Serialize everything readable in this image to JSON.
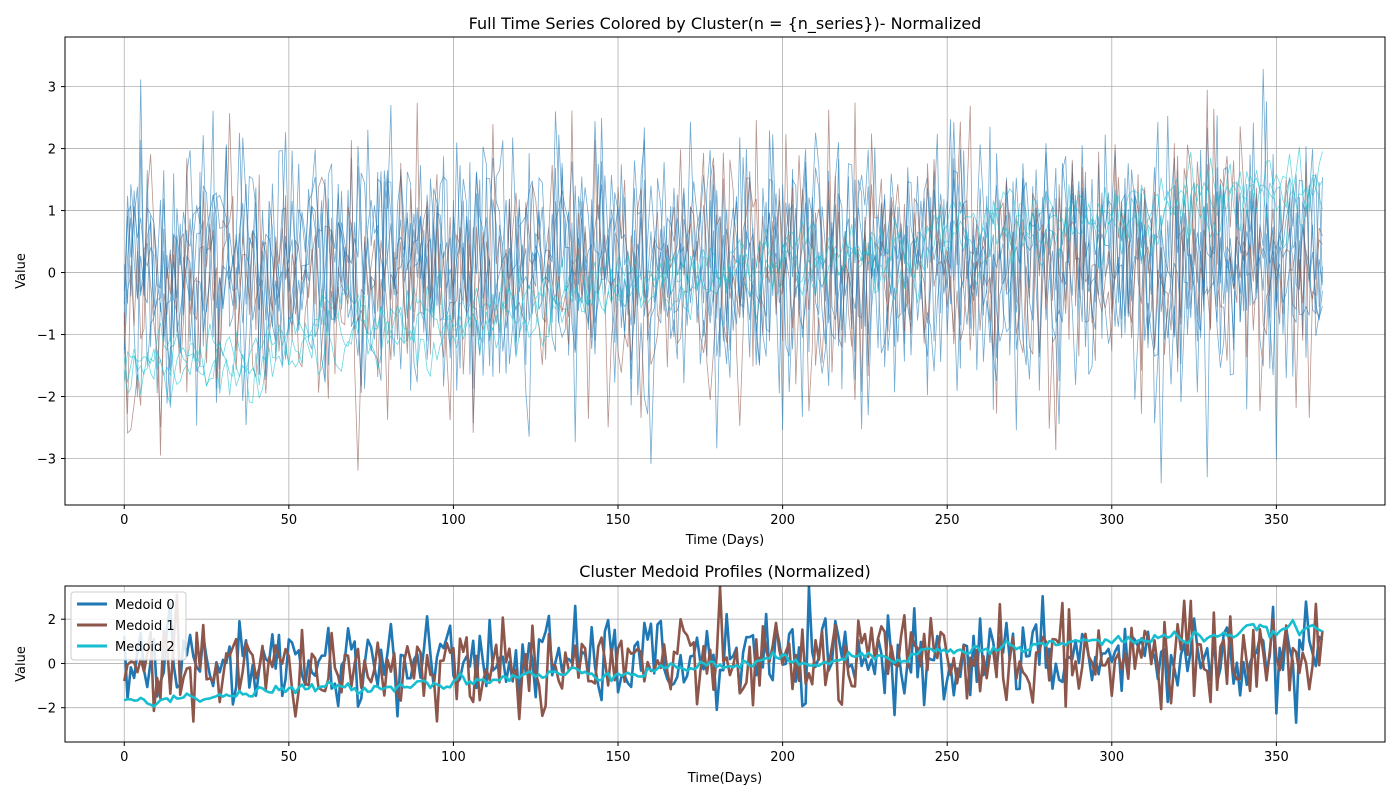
{
  "colors": {
    "cluster0": "#1f77b4",
    "cluster1": "#8c564b",
    "cluster2": "#17becf",
    "grid": "#b0b0b0",
    "axis": "#000000"
  },
  "chart_data": [
    {
      "type": "line",
      "title": "Full Time Series Colored by Cluster(n = {n_series})- Normalized",
      "xlabel": "Time (Days)",
      "ylabel": "Value",
      "xlim": [
        -18,
        383
      ],
      "ylim": [
        -3.75,
        3.8
      ],
      "xticks": [
        0,
        50,
        100,
        150,
        200,
        250,
        300,
        350
      ],
      "xtick_labels": [
        "0",
        "50",
        "100",
        "150",
        "200",
        "250",
        "300",
        "350"
      ],
      "yticks": [
        -3,
        -2,
        -1,
        0,
        1,
        2,
        3
      ],
      "ytick_labels": [
        "−3",
        "−2",
        "−1",
        "0",
        "1",
        "2",
        "3"
      ],
      "grid": true,
      "x_range": [
        0,
        364
      ],
      "series_count_by_cluster": [
        6,
        2,
        3
      ],
      "cluster_trend": {
        "cluster0": {
          "start": 0.0,
          "end": 0.3,
          "noise_sd": 0.95
        },
        "cluster1": {
          "start": -0.4,
          "end": 0.3,
          "noise_sd": 1.0
        },
        "cluster2": {
          "start": -1.6,
          "end": 1.5,
          "noise_sd": 0.3
        }
      }
    },
    {
      "type": "line",
      "title": "Cluster Medoid Profiles (Normalized)",
      "xlabel": "Time(Days)",
      "ylabel": "Value",
      "xlim": [
        -18,
        383
      ],
      "ylim": [
        -3.55,
        3.5
      ],
      "xticks": [
        0,
        50,
        100,
        150,
        200,
        250,
        300,
        350
      ],
      "xtick_labels": [
        "0",
        "50",
        "100",
        "150",
        "200",
        "250",
        "300",
        "350"
      ],
      "yticks": [
        -2,
        0,
        2
      ],
      "ytick_labels": [
        "−2",
        "0",
        "2"
      ],
      "grid": true,
      "legend_position": "top-left",
      "series": [
        {
          "name": "Medoid 0",
          "color": "#1f77b4",
          "trend_start": 0.0,
          "trend_end": 0.3,
          "noise_sd": 1.0
        },
        {
          "name": "Medoid 1",
          "color": "#8c564b",
          "trend_start": -0.4,
          "trend_end": 0.4,
          "noise_sd": 1.05
        },
        {
          "name": "Medoid 2",
          "color": "#17becf",
          "trend_start": -1.7,
          "trend_end": 1.6,
          "noise_sd": 0.15
        }
      ]
    }
  ]
}
